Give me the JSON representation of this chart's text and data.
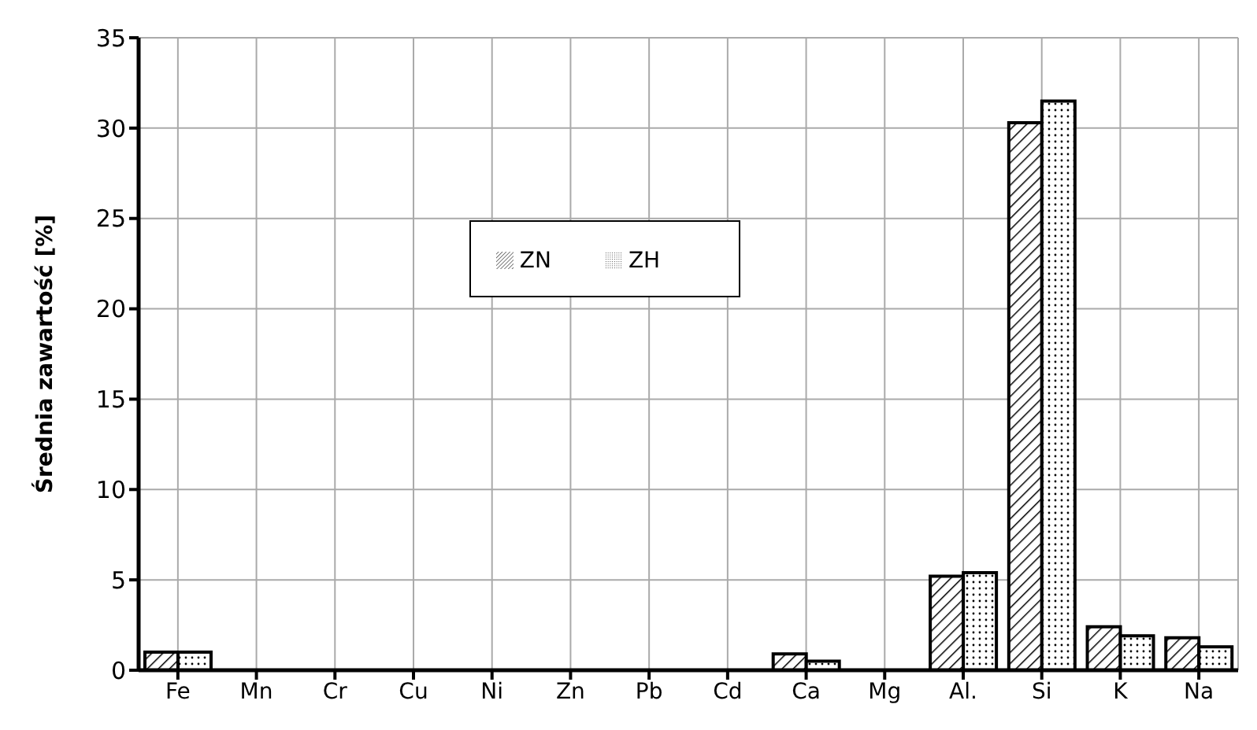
{
  "chart_data": {
    "type": "bar",
    "ylabel": "Średnia zawartość [%]",
    "categories": [
      "Fe",
      "Mn",
      "Cr",
      "Cu",
      "Ni",
      "Zn",
      "Pb",
      "Cd",
      "Ca",
      "Mg",
      "Al.",
      "Si",
      "K",
      "Na"
    ],
    "series": [
      {
        "name": "ZN",
        "color": "#000000",
        "values": [
          1.0,
          0,
          0,
          0,
          0,
          0,
          0,
          0,
          0.9,
          0,
          5.2,
          30.3,
          2.4,
          1.8
        ]
      },
      {
        "name": "ZH",
        "color": "#000000",
        "values": [
          1.0,
          0,
          0,
          0,
          0,
          0,
          0,
          0,
          0.5,
          0,
          5.4,
          31.5,
          1.9,
          1.3
        ]
      }
    ],
    "ylim": [
      0,
      35
    ],
    "yticks": [
      0,
      5,
      10,
      15,
      20,
      25,
      30,
      35
    ],
    "grid": true,
    "legend": "center"
  }
}
